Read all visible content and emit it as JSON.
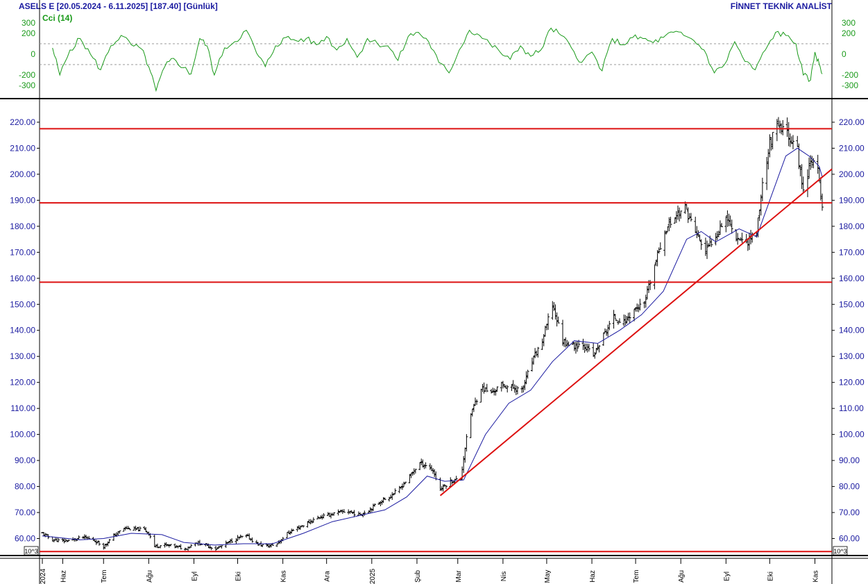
{
  "header": {
    "left": "ASELS E  [20.05.2024 - 6.11.2025]  [187.40]  [Günlük]",
    "right": "FİNNET TEKNİK ANALİST"
  },
  "colors": {
    "text": "#1a1aa0",
    "cci": "#1a9a1a",
    "price_bars": "#000000",
    "moving_average": "#1a1aa0",
    "support_resistance": "#dd1111"
  },
  "chart_data": [
    {
      "type": "line",
      "title": "Cci (14)",
      "yticks": [
        300,
        200,
        0,
        -200,
        -300
      ],
      "ylim": [
        -400,
        400
      ],
      "reference_lines": [
        100,
        -100
      ],
      "series": [
        {
          "name": "Cci (14)",
          "points": [
            [
              "2024-05-27",
              60
            ],
            [
              "2024-06-01",
              -200
            ],
            [
              "2024-06-08",
              40
            ],
            [
              "2024-06-15",
              150
            ],
            [
              "2024-06-22",
              0
            ],
            [
              "2024-06-29",
              -150
            ],
            [
              "2024-07-06",
              80
            ],
            [
              "2024-07-13",
              180
            ],
            [
              "2024-07-20",
              90
            ],
            [
              "2024-07-27",
              50
            ],
            [
              "2024-08-01",
              -120
            ],
            [
              "2024-08-06",
              -350
            ],
            [
              "2024-08-12",
              -120
            ],
            [
              "2024-08-18",
              -40
            ],
            [
              "2024-08-25",
              -130
            ],
            [
              "2024-08-30",
              -190
            ],
            [
              "2024-09-05",
              150
            ],
            [
              "2024-09-10",
              80
            ],
            [
              "2024-09-15",
              -200
            ],
            [
              "2024-09-22",
              60
            ],
            [
              "2024-09-29",
              120
            ],
            [
              "2024-10-07",
              230
            ],
            [
              "2024-10-14",
              10
            ],
            [
              "2024-10-20",
              -120
            ],
            [
              "2024-10-27",
              80
            ],
            [
              "2024-11-03",
              160
            ],
            [
              "2024-11-10",
              130
            ],
            [
              "2024-11-17",
              150
            ],
            [
              "2024-11-24",
              90
            ],
            [
              "2024-12-01",
              170
            ],
            [
              "2024-12-08",
              40
            ],
            [
              "2024-12-15",
              150
            ],
            [
              "2024-12-22",
              -30
            ],
            [
              "2024-12-29",
              150
            ],
            [
              "2025-01-05",
              100
            ],
            [
              "2025-01-12",
              80
            ],
            [
              "2025-01-19",
              -60
            ],
            [
              "2025-01-26",
              170
            ],
            [
              "2025-02-02",
              210
            ],
            [
              "2025-02-09",
              120
            ],
            [
              "2025-02-16",
              -80
            ],
            [
              "2025-02-23",
              -180
            ],
            [
              "2025-03-02",
              40
            ],
            [
              "2025-03-09",
              230
            ],
            [
              "2025-03-16",
              180
            ],
            [
              "2025-03-23",
              100
            ],
            [
              "2025-03-30",
              20
            ],
            [
              "2025-04-06",
              -50
            ],
            [
              "2025-04-13",
              80
            ],
            [
              "2025-04-20",
              -20
            ],
            [
              "2025-04-27",
              40
            ],
            [
              "2025-05-04",
              250
            ],
            [
              "2025-05-11",
              180
            ],
            [
              "2025-05-18",
              60
            ],
            [
              "2025-05-25",
              -80
            ],
            [
              "2025-06-01",
              20
            ],
            [
              "2025-06-08",
              -160
            ],
            [
              "2025-06-15",
              150
            ],
            [
              "2025-06-22",
              90
            ],
            [
              "2025-06-29",
              160
            ],
            [
              "2025-07-06",
              150
            ],
            [
              "2025-07-13",
              110
            ],
            [
              "2025-07-20",
              160
            ],
            [
              "2025-07-27",
              210
            ],
            [
              "2025-08-03",
              180
            ],
            [
              "2025-08-10",
              130
            ],
            [
              "2025-08-17",
              40
            ],
            [
              "2025-08-24",
              -180
            ],
            [
              "2025-08-31",
              -100
            ],
            [
              "2025-09-07",
              120
            ],
            [
              "2025-09-14",
              -70
            ],
            [
              "2025-09-21",
              -150
            ],
            [
              "2025-09-28",
              40
            ],
            [
              "2025-10-05",
              210
            ],
            [
              "2025-10-12",
              180
            ],
            [
              "2025-10-19",
              100
            ],
            [
              "2025-10-24",
              -200
            ],
            [
              "2025-10-29",
              -250
            ],
            [
              "2025-11-01",
              20
            ],
            [
              "2025-11-04",
              -100
            ],
            [
              "2025-11-06",
              -190
            ]
          ]
        }
      ]
    },
    {
      "type": "bar",
      "subtype": "ohlc",
      "ylim": [
        54,
        228
      ],
      "yticks": [
        60,
        70,
        80,
        90,
        100,
        110,
        120,
        130,
        140,
        150,
        160,
        170,
        180,
        190,
        200,
        210,
        220
      ],
      "ytick_labels": [
        "60.00",
        "70.00",
        "80.00",
        "90.00",
        "100.00",
        "110.00",
        "120.00",
        "130.00",
        "140.00",
        "150.00",
        "160.00",
        "170.00",
        "180.00",
        "190.00",
        "200.00",
        "210.00",
        "220.00"
      ],
      "scale_marker": "10^3",
      "xlim": [
        "2024-05-20",
        "2025-11-06"
      ],
      "xtick_labels": [
        {
          "date": "2024-05-20",
          "label": "2024"
        },
        {
          "date": "2024-06-03",
          "label": "Haz"
        },
        {
          "date": "2024-07-01",
          "label": "Tem"
        },
        {
          "date": "2024-08-01",
          "label": "Ağu"
        },
        {
          "date": "2024-09-01",
          "label": "Eyl"
        },
        {
          "date": "2024-10-01",
          "label": "Eki"
        },
        {
          "date": "2024-11-01",
          "label": "Kas"
        },
        {
          "date": "2024-12-01",
          "label": "Ara"
        },
        {
          "date": "2025-01-01",
          "label": "2025"
        },
        {
          "date": "2025-02-01",
          "label": "Şub"
        },
        {
          "date": "2025-03-01",
          "label": "Mar"
        },
        {
          "date": "2025-04-01",
          "label": "Nis"
        },
        {
          "date": "2025-05-01",
          "label": "May"
        },
        {
          "date": "2025-06-01",
          "label": "Haz"
        },
        {
          "date": "2025-07-01",
          "label": "Tem"
        },
        {
          "date": "2025-08-01",
          "label": "Ağu"
        },
        {
          "date": "2025-09-01",
          "label": "Eyl"
        },
        {
          "date": "2025-10-01",
          "label": "Eki"
        },
        {
          "date": "2025-11-01",
          "label": "Kas"
        }
      ],
      "price_path": [
        [
          "2024-05-20",
          62
        ],
        [
          "2024-05-27",
          59.5
        ],
        [
          "2024-06-03",
          59
        ],
        [
          "2024-06-10",
          59.5
        ],
        [
          "2024-06-17",
          60.5
        ],
        [
          "2024-06-24",
          59.5
        ],
        [
          "2024-07-01",
          57
        ],
        [
          "2024-07-08",
          61
        ],
        [
          "2024-07-15",
          64
        ],
        [
          "2024-07-22",
          63.5
        ],
        [
          "2024-07-29",
          63.5
        ],
        [
          "2024-08-01",
          62
        ],
        [
          "2024-08-05",
          57
        ],
        [
          "2024-08-12",
          57.5
        ],
        [
          "2024-08-19",
          57
        ],
        [
          "2024-08-26",
          56
        ],
        [
          "2024-09-02",
          58.5
        ],
        [
          "2024-09-09",
          57.5
        ],
        [
          "2024-09-16",
          56
        ],
        [
          "2024-09-23",
          58
        ],
        [
          "2024-09-30",
          60
        ],
        [
          "2024-10-07",
          61
        ],
        [
          "2024-10-14",
          58
        ],
        [
          "2024-10-21",
          57
        ],
        [
          "2024-10-28",
          58
        ],
        [
          "2024-11-04",
          62
        ],
        [
          "2024-11-11",
          64
        ],
        [
          "2024-11-18",
          66
        ],
        [
          "2024-11-25",
          68
        ],
        [
          "2024-12-02",
          69
        ],
        [
          "2024-12-09",
          70
        ],
        [
          "2024-12-16",
          70.5
        ],
        [
          "2024-12-23",
          69
        ],
        [
          "2024-12-30",
          71
        ],
        [
          "2025-01-06",
          74
        ],
        [
          "2025-01-13",
          76
        ],
        [
          "2025-01-20",
          79
        ],
        [
          "2025-01-27",
          84
        ],
        [
          "2025-02-03",
          89
        ],
        [
          "2025-02-08",
          88
        ],
        [
          "2025-02-12",
          86
        ],
        [
          "2025-02-17",
          79
        ],
        [
          "2025-02-24",
          82
        ],
        [
          "2025-03-03",
          83
        ],
        [
          "2025-03-06",
          95
        ],
        [
          "2025-03-10",
          108
        ],
        [
          "2025-03-17",
          118
        ],
        [
          "2025-03-24",
          116
        ],
        [
          "2025-03-31",
          119
        ],
        [
          "2025-04-07",
          118
        ],
        [
          "2025-04-14",
          117
        ],
        [
          "2025-04-21",
          128
        ],
        [
          "2025-04-28",
          136
        ],
        [
          "2025-05-05",
          150
        ],
        [
          "2025-05-12",
          136
        ],
        [
          "2025-05-19",
          134
        ],
        [
          "2025-05-26",
          135
        ],
        [
          "2025-06-02",
          130
        ],
        [
          "2025-06-09",
          138
        ],
        [
          "2025-06-16",
          145
        ],
        [
          "2025-06-23",
          143
        ],
        [
          "2025-06-30",
          148
        ],
        [
          "2025-07-07",
          150
        ],
        [
          "2025-07-14",
          165
        ],
        [
          "2025-07-21",
          178
        ],
        [
          "2025-07-28",
          184
        ],
        [
          "2025-08-04",
          187
        ],
        [
          "2025-08-11",
          178
        ],
        [
          "2025-08-18",
          170
        ],
        [
          "2025-08-25",
          177
        ],
        [
          "2025-09-01",
          184
        ],
        [
          "2025-09-08",
          176
        ],
        [
          "2025-09-15",
          174
        ],
        [
          "2025-09-22",
          178
        ],
        [
          "2025-09-26",
          196
        ],
        [
          "2025-10-01",
          212
        ],
        [
          "2025-10-06",
          218
        ],
        [
          "2025-10-13",
          216
        ],
        [
          "2025-10-20",
          209
        ],
        [
          "2025-10-24",
          193
        ],
        [
          "2025-10-29",
          206
        ],
        [
          "2025-11-03",
          201
        ],
        [
          "2025-11-06",
          187.4
        ]
      ],
      "moving_average": [
        [
          "2024-05-20",
          61
        ],
        [
          "2024-06-15",
          59.5
        ],
        [
          "2024-07-01",
          60
        ],
        [
          "2024-07-20",
          62
        ],
        [
          "2024-08-10",
          61.5
        ],
        [
          "2024-08-25",
          58.5
        ],
        [
          "2024-09-15",
          57.5
        ],
        [
          "2024-10-05",
          58
        ],
        [
          "2024-10-25",
          58
        ],
        [
          "2024-11-15",
          62
        ],
        [
          "2024-12-05",
          66.5
        ],
        [
          "2024-12-25",
          69
        ],
        [
          "2025-01-10",
          71
        ],
        [
          "2025-01-25",
          76
        ],
        [
          "2025-02-08",
          84
        ],
        [
          "2025-02-20",
          82
        ],
        [
          "2025-03-05",
          82.5
        ],
        [
          "2025-03-20",
          100
        ],
        [
          "2025-04-05",
          112
        ],
        [
          "2025-04-20",
          117
        ],
        [
          "2025-05-05",
          128
        ],
        [
          "2025-05-20",
          136
        ],
        [
          "2025-06-05",
          135
        ],
        [
          "2025-06-20",
          140
        ],
        [
          "2025-07-05",
          146
        ],
        [
          "2025-07-20",
          155
        ],
        [
          "2025-08-05",
          175
        ],
        [
          "2025-08-15",
          178
        ],
        [
          "2025-08-25",
          174
        ],
        [
          "2025-09-10",
          179
        ],
        [
          "2025-09-22",
          176
        ],
        [
          "2025-10-01",
          190
        ],
        [
          "2025-10-12",
          207
        ],
        [
          "2025-10-20",
          210
        ],
        [
          "2025-10-28",
          207
        ],
        [
          "2025-11-04",
          203
        ],
        [
          "2025-11-06",
          199
        ]
      ],
      "horizontal_levels": [
        217.5,
        189,
        158.5,
        55
      ],
      "trendline": {
        "from": [
          "2025-02-17",
          76.5
        ],
        "to": [
          "2025-11-06",
          202
        ]
      }
    }
  ]
}
